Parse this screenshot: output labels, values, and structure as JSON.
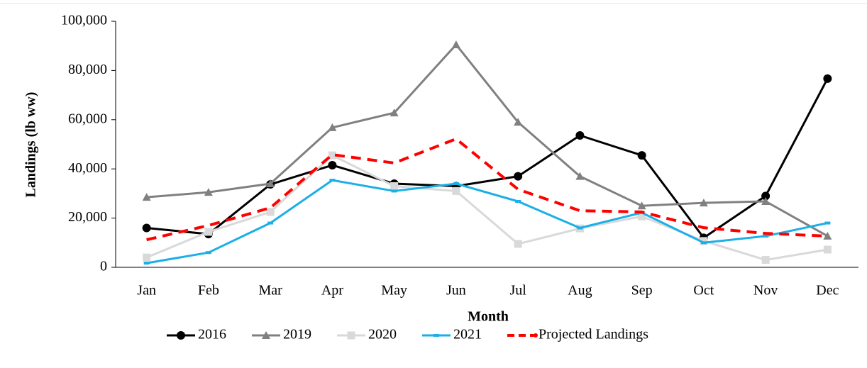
{
  "chart_data": {
    "type": "line",
    "x_label": "Month",
    "y_label": "Landings (lb ww)",
    "categories": [
      "Jan",
      "Feb",
      "Mar",
      "Apr",
      "May",
      "Jun",
      "Jul",
      "Aug",
      "Sep",
      "Oct",
      "Nov",
      "Dec"
    ],
    "series": [
      {
        "name": "2016",
        "color": "#000000",
        "marker": "circle",
        "dashed": false,
        "values": [
          16000,
          13500,
          33700,
          41500,
          34000,
          33000,
          37000,
          53600,
          45500,
          12000,
          29000,
          76700
        ]
      },
      {
        "name": "2019",
        "color": "#808080",
        "marker": "triangle",
        "dashed": false,
        "values": [
          28500,
          30500,
          34000,
          56800,
          62800,
          90500,
          59000,
          37000,
          25000,
          26200,
          26800,
          12700
        ]
      },
      {
        "name": "2020",
        "color": "#d9d9d9",
        "marker": "square",
        "dashed": false,
        "values": [
          4000,
          14400,
          22500,
          45500,
          33000,
          31000,
          9500,
          15800,
          20700,
          10700,
          3000,
          7200
        ]
      },
      {
        "name": "2021",
        "color": "#1aafe6",
        "marker": "dash",
        "dashed": false,
        "values": [
          1700,
          6000,
          18000,
          35400,
          31000,
          34000,
          26800,
          16000,
          22200,
          10000,
          12700,
          18000
        ]
      },
      {
        "name": "Projected Landings",
        "color": "#ff0000",
        "marker": "none",
        "dashed": true,
        "values": [
          11200,
          17000,
          24200,
          45800,
          42400,
          52200,
          31700,
          23000,
          22500,
          16100,
          13800,
          12700
        ]
      }
    ],
    "ylim": [
      0,
      100000
    ],
    "yticks": [
      0,
      {
        "value": 20000,
        "label": "20,000"
      },
      {
        "value": 40000,
        "label": "40,000"
      },
      {
        "value": 60000,
        "label": "60,000"
      },
      {
        "value": 80000,
        "label": "80,000"
      },
      {
        "value": 100000,
        "label": "100,000"
      }
    ],
    "grid": false,
    "legend": "bottom"
  }
}
